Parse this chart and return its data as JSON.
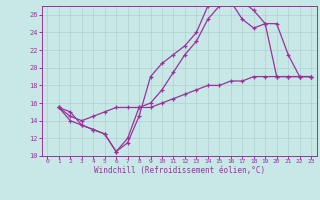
{
  "title": "",
  "xlabel": "Windchill (Refroidissement éolien,°C)",
  "ylabel": "",
  "bg_color": "#c8e8e8",
  "grid_color": "#b0d0d0",
  "line_color": "#993399",
  "xlim": [
    -0.5,
    23.5
  ],
  "ylim": [
    10,
    27
  ],
  "xticks": [
    0,
    1,
    2,
    3,
    4,
    5,
    6,
    7,
    8,
    9,
    10,
    11,
    12,
    13,
    14,
    15,
    16,
    17,
    18,
    19,
    20,
    21,
    22,
    23
  ],
  "yticks": [
    10,
    12,
    14,
    16,
    18,
    20,
    22,
    24,
    26
  ],
  "line1_x": [
    1,
    2,
    3,
    4,
    5,
    6,
    7,
    8,
    9,
    10,
    11,
    12,
    13,
    14,
    15,
    16,
    17,
    18,
    19,
    20,
    21,
    22,
    23
  ],
  "line1_y": [
    15.5,
    15.0,
    13.5,
    13.0,
    12.5,
    10.5,
    11.5,
    14.5,
    19.0,
    20.5,
    21.5,
    22.5,
    24.0,
    27.0,
    27.5,
    27.5,
    27.5,
    26.5,
    25.0,
    19.0,
    19.0,
    19.0,
    19.0
  ],
  "line2_x": [
    1,
    2,
    3,
    4,
    5,
    6,
    7,
    8,
    9,
    10,
    11,
    12,
    13,
    14,
    15,
    16,
    17,
    18,
    19,
    20,
    21,
    22,
    23
  ],
  "line2_y": [
    15.5,
    14.0,
    13.5,
    13.0,
    12.5,
    10.5,
    12.0,
    15.5,
    16.0,
    17.5,
    19.5,
    21.5,
    23.0,
    25.5,
    27.0,
    27.5,
    25.5,
    24.5,
    25.0,
    25.0,
    21.5,
    19.0,
    19.0
  ],
  "line3_x": [
    1,
    2,
    3,
    4,
    5,
    6,
    7,
    8,
    9,
    10,
    11,
    12,
    13,
    14,
    15,
    16,
    17,
    18,
    19,
    20,
    21,
    22,
    23
  ],
  "line3_y": [
    15.5,
    14.5,
    14.0,
    14.5,
    15.0,
    15.5,
    15.5,
    15.5,
    15.5,
    16.0,
    16.5,
    17.0,
    17.5,
    18.0,
    18.0,
    18.5,
    18.5,
    19.0,
    19.0,
    19.0,
    19.0,
    19.0,
    19.0
  ]
}
